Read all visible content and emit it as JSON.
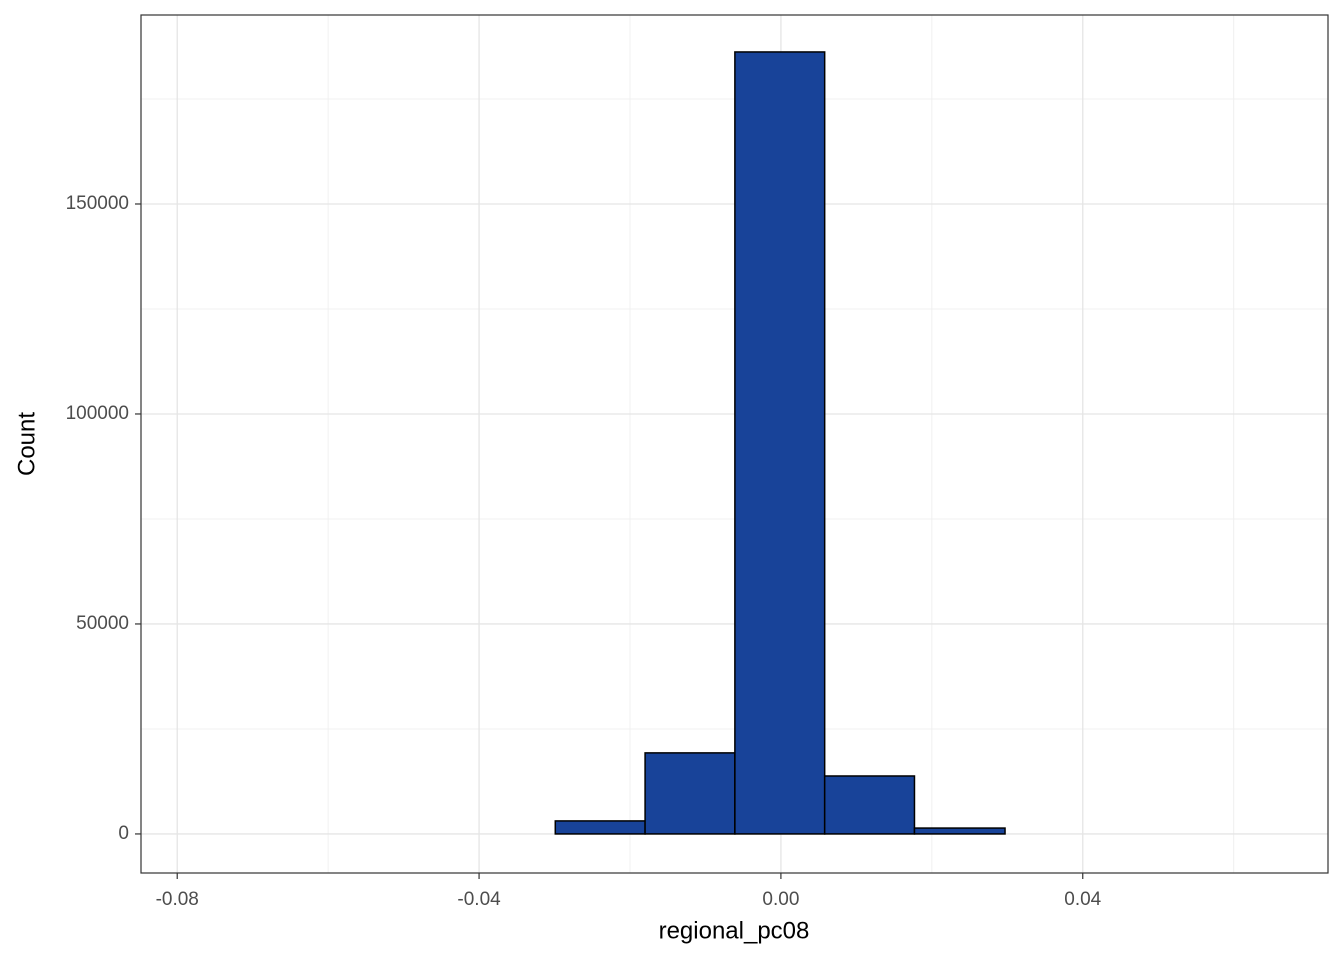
{
  "chart_data": {
    "type": "histogram",
    "x_label": "regional_pc08",
    "y_label": "Count",
    "bins": [
      -0.0775,
      -0.0656,
      -0.0537,
      -0.0418,
      -0.0299,
      -0.018,
      -0.0061,
      0.0058,
      0.0177,
      0.0297,
      0.0416,
      0.0535,
      0.0654
    ],
    "values": [
      0,
      0,
      0,
      0,
      3100,
      19300,
      186200,
      13800,
      1400,
      0,
      0,
      0
    ],
    "color": "#184399",
    "edge_color": "#000000",
    "xlim": [
      -0.0848,
      0.0725
    ],
    "ylim": [
      -9300,
      195000
    ],
    "xticks": [
      {
        "value": -0.08,
        "label": "-0.08"
      },
      {
        "value": -0.04,
        "label": "-0.04"
      },
      {
        "value": 0,
        "label": "0.00"
      },
      {
        "value": 0.04,
        "label": "0.04"
      }
    ],
    "yticks": [
      0,
      50000,
      100000,
      150000
    ],
    "grid": true
  }
}
